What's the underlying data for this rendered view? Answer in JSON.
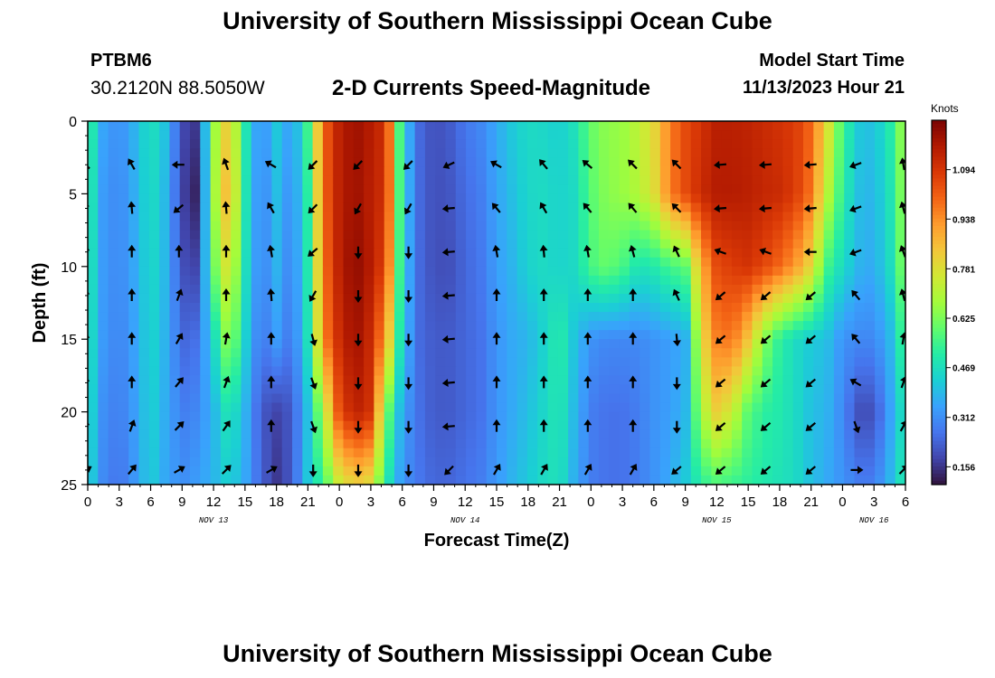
{
  "header": {
    "title": "University of Southern Mississippi Ocean Cube",
    "station_id": "PTBM6",
    "station_coords": "30.2120N  88.5050W",
    "product_title": "2-D Currents Speed-Magnitude",
    "model_start_label": "Model Start Time",
    "model_start_value": "11/13/2023 Hour 21"
  },
  "footer": {
    "title_repeat": "University of Southern Mississippi Ocean Cube"
  },
  "chart_data": {
    "type": "heatmap",
    "title": "2-D Currents Speed-Magnitude",
    "xlabel": "Forecast Time(Z)",
    "ylabel": "Depth (ft)",
    "x_tick_labels": [
      "0",
      "3",
      "6",
      "9",
      "12",
      "15",
      "18",
      "21",
      "0",
      "3",
      "6",
      "9",
      "12",
      "15",
      "18",
      "21",
      "0",
      "3",
      "6",
      "9",
      "12",
      "15",
      "18",
      "21",
      "0",
      "3",
      "6"
    ],
    "x_hours_range": [
      0,
      78
    ],
    "date_labels": [
      {
        "text": "NOV 13",
        "hour": 12
      },
      {
        "text": "NOV 14",
        "hour": 36
      },
      {
        "text": "NOV 15",
        "hour": 60
      },
      {
        "text": "NOV 16",
        "hour": 75
      }
    ],
    "y_ticks": [
      0,
      5,
      10,
      15,
      20,
      25
    ],
    "ylim": [
      0,
      25
    ],
    "colorbar": {
      "units": "Knots",
      "tick_labels": [
        "1.094",
        "0.938",
        "0.781",
        "0.625",
        "0.469",
        "0.312",
        "0.156"
      ],
      "tick_values": [
        1.094,
        0.938,
        0.781,
        0.625,
        0.469,
        0.312,
        0.156
      ],
      "range": [
        0.1,
        1.25
      ],
      "colors": [
        "#30123b",
        "#4145ab",
        "#4675ed",
        "#39a2fc",
        "#1bcfd4",
        "#24eca6",
        "#61fc6c",
        "#a4fc3b",
        "#d1e834",
        "#f3c63a",
        "#fe9b2d",
        "#f36315",
        "#d93806",
        "#b11901",
        "#7a0402"
      ]
    },
    "speed_samples": {
      "hours": [
        0,
        1.5,
        3,
        4.5,
        6,
        7.5,
        9,
        10.5,
        12,
        13.5,
        15,
        16.5,
        18,
        19.5,
        21,
        22.5,
        24,
        25.5,
        27,
        28.5,
        30,
        31.5,
        33,
        34.5,
        36,
        37.5,
        39,
        40.5,
        42,
        43.5,
        45,
        46.5,
        48,
        49.5,
        51,
        52.5,
        54,
        55.5,
        57,
        58.5,
        60,
        61.5,
        63,
        64.5,
        66,
        67.5,
        69,
        70.5,
        72,
        73.5,
        75,
        76.5,
        78
      ],
      "depths_ft": [
        0,
        5,
        10,
        15,
        20,
        25
      ],
      "rows": [
        [
          0.56,
          0.35,
          0.31,
          0.38,
          0.48,
          0.4,
          0.19,
          0.16,
          0.65,
          0.85,
          0.5,
          0.3,
          0.42,
          0.33,
          0.55,
          1.0,
          1.15,
          1.2,
          1.16,
          1.1,
          0.45,
          0.25,
          0.2,
          0.22,
          0.27,
          0.3,
          0.36,
          0.42,
          0.46,
          0.45,
          0.43,
          0.48,
          0.6,
          0.65,
          0.66,
          0.72,
          0.8,
          0.96,
          1.05,
          1.1,
          1.15,
          1.15,
          1.14,
          1.12,
          1.1,
          1.08,
          1.0,
          0.8,
          0.55,
          0.42,
          0.4,
          0.5,
          0.7
        ],
        [
          0.54,
          0.33,
          0.3,
          0.37,
          0.47,
          0.38,
          0.18,
          0.12,
          0.66,
          0.9,
          0.5,
          0.28,
          0.4,
          0.3,
          0.52,
          1.0,
          1.15,
          1.2,
          1.15,
          1.1,
          0.45,
          0.25,
          0.2,
          0.21,
          0.25,
          0.28,
          0.35,
          0.4,
          0.45,
          0.46,
          0.44,
          0.46,
          0.58,
          0.64,
          0.66,
          0.7,
          0.78,
          0.96,
          1.05,
          1.12,
          1.16,
          1.16,
          1.15,
          1.13,
          1.12,
          1.08,
          0.98,
          0.72,
          0.52,
          0.4,
          0.38,
          0.48,
          0.68
        ],
        [
          0.52,
          0.33,
          0.3,
          0.36,
          0.46,
          0.38,
          0.2,
          0.18,
          0.6,
          0.8,
          0.48,
          0.28,
          0.38,
          0.28,
          0.5,
          0.98,
          1.15,
          1.22,
          1.16,
          1.05,
          0.44,
          0.25,
          0.2,
          0.2,
          0.24,
          0.27,
          0.34,
          0.38,
          0.44,
          0.46,
          0.44,
          0.46,
          0.56,
          0.6,
          0.56,
          0.48,
          0.5,
          0.55,
          0.58,
          0.88,
          1.05,
          1.08,
          1.1,
          1.06,
          1.0,
          0.92,
          0.8,
          0.55,
          0.46,
          0.38,
          0.36,
          0.46,
          0.66
        ],
        [
          0.5,
          0.33,
          0.29,
          0.35,
          0.45,
          0.37,
          0.24,
          0.26,
          0.45,
          0.68,
          0.44,
          0.26,
          0.34,
          0.26,
          0.48,
          0.95,
          1.12,
          1.2,
          1.12,
          0.9,
          0.42,
          0.25,
          0.22,
          0.22,
          0.24,
          0.26,
          0.32,
          0.36,
          0.38,
          0.44,
          0.52,
          0.4,
          0.32,
          0.3,
          0.3,
          0.3,
          0.32,
          0.34,
          0.36,
          0.78,
          0.96,
          0.98,
          0.84,
          0.64,
          0.52,
          0.46,
          0.42,
          0.4,
          0.32,
          0.3,
          0.3,
          0.38,
          0.58
        ],
        [
          0.48,
          0.31,
          0.28,
          0.34,
          0.44,
          0.36,
          0.28,
          0.3,
          0.38,
          0.5,
          0.38,
          0.22,
          0.18,
          0.22,
          0.4,
          0.7,
          1.05,
          1.15,
          1.1,
          0.62,
          0.35,
          0.26,
          0.22,
          0.22,
          0.24,
          0.26,
          0.32,
          0.36,
          0.4,
          0.45,
          0.5,
          0.38,
          0.28,
          0.26,
          0.26,
          0.28,
          0.32,
          0.34,
          0.38,
          0.68,
          0.82,
          0.74,
          0.58,
          0.52,
          0.5,
          0.46,
          0.4,
          0.38,
          0.3,
          0.2,
          0.2,
          0.34,
          0.5
        ],
        [
          0.46,
          0.3,
          0.26,
          0.33,
          0.43,
          0.35,
          0.31,
          0.34,
          0.38,
          0.44,
          0.36,
          0.24,
          0.16,
          0.22,
          0.42,
          0.55,
          0.75,
          0.82,
          0.78,
          0.5,
          0.32,
          0.27,
          0.24,
          0.24,
          0.26,
          0.28,
          0.33,
          0.38,
          0.42,
          0.46,
          0.48,
          0.36,
          0.28,
          0.26,
          0.26,
          0.28,
          0.32,
          0.36,
          0.42,
          0.52,
          0.56,
          0.54,
          0.52,
          0.5,
          0.48,
          0.46,
          0.4,
          0.36,
          0.32,
          0.28,
          0.28,
          0.38,
          0.52
        ]
      ]
    },
    "vectors": {
      "hours": [
        -0.2,
        4.2,
        8.7,
        13.2,
        17.5,
        21.5,
        25.8,
        30.6,
        34.5,
        39,
        43.5,
        47.7,
        52,
        56.2,
        60.4,
        64.7,
        69,
        73.3,
        77.8
      ],
      "depths_ft": [
        3,
        6,
        9,
        12,
        15,
        18,
        21,
        24
      ],
      "directions_deg": [
        [
          -45,
          -30,
          -90,
          -20,
          -60,
          -135,
          -135,
          -135,
          -115,
          -60,
          -40,
          -50,
          -45,
          -45,
          -95,
          -95,
          -95,
          -110,
          -10
        ],
        [
          -10,
          -5,
          -130,
          -5,
          -30,
          -135,
          -150,
          -150,
          -95,
          -40,
          -30,
          -40,
          -40,
          -45,
          -95,
          -95,
          -95,
          -110,
          -15
        ],
        [
          0,
          0,
          0,
          0,
          -10,
          -130,
          -180,
          -180,
          -95,
          -10,
          -5,
          -10,
          -15,
          -25,
          -70,
          -70,
          -90,
          -110,
          -20
        ],
        [
          0,
          0,
          20,
          0,
          -5,
          -150,
          -180,
          -180,
          -95,
          0,
          0,
          0,
          0,
          -25,
          -130,
          -130,
          -130,
          -40,
          -15
        ],
        [
          0,
          0,
          30,
          10,
          0,
          165,
          180,
          180,
          -95,
          0,
          0,
          0,
          0,
          175,
          -130,
          -130,
          -130,
          -40,
          10
        ],
        [
          0,
          0,
          40,
          20,
          0,
          160,
          180,
          180,
          -95,
          0,
          0,
          0,
          0,
          180,
          -130,
          -130,
          -130,
          -60,
          20
        ],
        [
          0,
          20,
          45,
          35,
          0,
          160,
          180,
          180,
          -95,
          0,
          0,
          0,
          0,
          180,
          -130,
          -130,
          -130,
          160,
          30
        ],
        [
          60,
          40,
          60,
          45,
          60,
          180,
          180,
          180,
          -135,
          30,
          30,
          30,
          30,
          -130,
          -130,
          -130,
          -130,
          90,
          45
        ]
      ]
    }
  }
}
